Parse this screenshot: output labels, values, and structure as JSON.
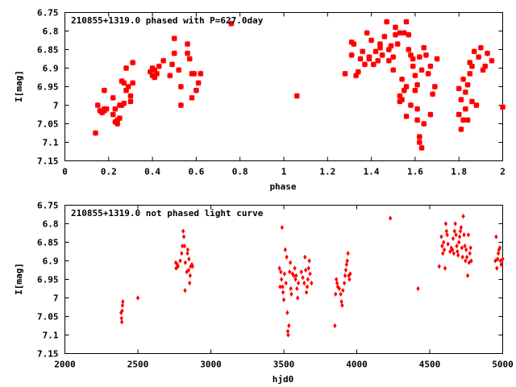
{
  "chart_data": [
    {
      "type": "scatter",
      "title": "210855+1319.0 phased with P=627.0day",
      "xlabel": "phase",
      "ylabel": "I[mag]",
      "xlim": [
        0,
        2
      ],
      "ylim": [
        6.75,
        7.15
      ],
      "y_inverted": true,
      "xticks": [
        "0",
        "0.2",
        "0.4",
        "0.6",
        "0.8",
        "1",
        "1.2",
        "1.4",
        "1.6",
        "1.8",
        "2"
      ],
      "yticks": [
        "6.75",
        "6.8",
        "6.85",
        "6.9",
        "6.95",
        "7",
        "7.05",
        "7.1",
        "7.15"
      ],
      "marker": "cross",
      "color": "#ff0000",
      "grid": false,
      "points": [
        [
          0.14,
          7.075
        ],
        [
          0.15,
          7.0
        ],
        [
          0.16,
          7.015
        ],
        [
          0.17,
          7.02
        ],
        [
          0.18,
          7.01
        ],
        [
          0.18,
          6.96
        ],
        [
          0.18,
          7.015
        ],
        [
          0.19,
          7.01
        ],
        [
          0.22,
          6.98
        ],
        [
          0.22,
          7.025
        ],
        [
          0.23,
          7.045
        ],
        [
          0.23,
          7.01
        ],
        [
          0.24,
          7.04
        ],
        [
          0.24,
          7.05
        ],
        [
          0.25,
          7.035
        ],
        [
          0.25,
          7.0
        ],
        [
          0.26,
          6.935
        ],
        [
          0.26,
          7.0
        ],
        [
          0.27,
          6.995
        ],
        [
          0.27,
          6.94
        ],
        [
          0.28,
          6.9
        ],
        [
          0.28,
          6.96
        ],
        [
          0.29,
          6.95
        ],
        [
          0.3,
          6.975
        ],
        [
          0.3,
          6.99
        ],
        [
          0.31,
          6.94
        ],
        [
          0.31,
          6.885
        ],
        [
          0.39,
          6.91
        ],
        [
          0.4,
          6.9
        ],
        [
          0.4,
          6.92
        ],
        [
          0.41,
          6.905
        ],
        [
          0.41,
          6.925
        ],
        [
          0.42,
          6.915
        ],
        [
          0.43,
          6.895
        ],
        [
          0.45,
          6.88
        ],
        [
          0.48,
          6.92
        ],
        [
          0.49,
          6.89
        ],
        [
          0.5,
          6.86
        ],
        [
          0.5,
          6.82
        ],
        [
          0.52,
          6.905
        ],
        [
          0.53,
          6.95
        ],
        [
          0.53,
          7.0
        ],
        [
          0.56,
          6.86
        ],
        [
          0.56,
          6.835
        ],
        [
          0.57,
          6.875
        ],
        [
          0.58,
          6.915
        ],
        [
          0.58,
          6.98
        ],
        [
          0.59,
          6.915
        ],
        [
          0.6,
          6.96
        ],
        [
          0.61,
          6.94
        ],
        [
          0.62,
          6.915
        ],
        [
          0.76,
          6.78
        ],
        [
          1.06,
          6.975
        ],
        [
          1.28,
          6.915
        ],
        [
          1.31,
          6.83
        ],
        [
          1.31,
          6.865
        ],
        [
          1.32,
          6.835
        ],
        [
          1.33,
          6.92
        ],
        [
          1.34,
          6.91
        ],
        [
          1.35,
          6.875
        ],
        [
          1.36,
          6.855
        ],
        [
          1.37,
          6.89
        ],
        [
          1.38,
          6.805
        ],
        [
          1.39,
          6.875
        ],
        [
          1.39,
          6.87
        ],
        [
          1.4,
          6.825
        ],
        [
          1.41,
          6.89
        ],
        [
          1.42,
          6.855
        ],
        [
          1.43,
          6.88
        ],
        [
          1.44,
          6.835
        ],
        [
          1.44,
          6.845
        ],
        [
          1.45,
          6.865
        ],
        [
          1.46,
          6.815
        ],
        [
          1.47,
          6.775
        ],
        [
          1.48,
          6.85
        ],
        [
          1.48,
          6.88
        ],
        [
          1.49,
          6.84
        ],
        [
          1.5,
          6.87
        ],
        [
          1.5,
          6.905
        ],
        [
          1.51,
          6.79
        ],
        [
          1.51,
          6.81
        ],
        [
          1.52,
          6.835
        ],
        [
          1.53,
          6.805
        ],
        [
          1.53,
          6.975
        ],
        [
          1.53,
          6.99
        ],
        [
          1.54,
          6.985
        ],
        [
          1.54,
          6.93
        ],
        [
          1.55,
          6.805
        ],
        [
          1.55,
          6.96
        ],
        [
          1.56,
          6.775
        ],
        [
          1.56,
          6.95
        ],
        [
          1.56,
          7.03
        ],
        [
          1.57,
          6.81
        ],
        [
          1.57,
          6.85
        ],
        [
          1.58,
          7.0
        ],
        [
          1.58,
          6.865
        ],
        [
          1.59,
          6.875
        ],
        [
          1.59,
          6.895
        ],
        [
          1.6,
          6.92
        ],
        [
          1.6,
          6.96
        ],
        [
          1.61,
          7.01
        ],
        [
          1.61,
          7.04
        ],
        [
          1.61,
          6.945
        ],
        [
          1.62,
          7.085
        ],
        [
          1.62,
          7.1
        ],
        [
          1.62,
          6.87
        ],
        [
          1.63,
          7.115
        ],
        [
          1.63,
          6.905
        ],
        [
          1.64,
          7.05
        ],
        [
          1.64,
          6.845
        ],
        [
          1.65,
          6.865
        ],
        [
          1.66,
          6.915
        ],
        [
          1.67,
          6.895
        ],
        [
          1.67,
          7.025
        ],
        [
          1.68,
          6.97
        ],
        [
          1.69,
          6.95
        ],
        [
          1.7,
          6.875
        ],
        [
          1.8,
          6.955
        ],
        [
          1.8,
          7.025
        ],
        [
          1.81,
          7.065
        ],
        [
          1.81,
          6.985
        ],
        [
          1.82,
          6.93
        ],
        [
          1.82,
          7.04
        ],
        [
          1.83,
          6.965
        ],
        [
          1.83,
          7.01
        ],
        [
          1.84,
          6.945
        ],
        [
          1.84,
          7.04
        ],
        [
          1.85,
          6.915
        ],
        [
          1.85,
          6.885
        ],
        [
          1.86,
          6.895
        ],
        [
          1.86,
          6.99
        ],
        [
          1.87,
          6.855
        ],
        [
          1.88,
          7.0
        ],
        [
          1.89,
          6.87
        ],
        [
          1.9,
          6.845
        ],
        [
          1.91,
          6.905
        ],
        [
          1.92,
          6.895
        ],
        [
          1.93,
          6.86
        ],
        [
          1.95,
          6.88
        ],
        [
          2.0,
          7.005
        ]
      ]
    },
    {
      "type": "scatter",
      "title": "210855+1319.0 not phased light curve",
      "xlabel": "hjd0",
      "ylabel": "I[mag]",
      "xlim": [
        2000,
        5000
      ],
      "ylim": [
        6.75,
        7.15
      ],
      "y_inverted": true,
      "xticks": [
        "2000",
        "2500",
        "3000",
        "3500",
        "4000",
        "4500",
        "5000"
      ],
      "yticks": [
        "6.75",
        "6.8",
        "6.85",
        "6.9",
        "6.95",
        "7",
        "7.05",
        "7.1",
        "7.15"
      ],
      "marker": "diamond",
      "color": "#ff0000",
      "grid": false,
      "points": [
        [
          2385,
          7.04
        ],
        [
          2388,
          7.055
        ],
        [
          2390,
          7.065
        ],
        [
          2392,
          7.035
        ],
        [
          2395,
          7.02
        ],
        [
          2397,
          7.01
        ],
        [
          2500,
          7.0
        ],
        [
          2760,
          6.905
        ],
        [
          2762,
          6.92
        ],
        [
          2770,
          6.91
        ],
        [
          2775,
          6.915
        ],
        [
          2790,
          6.9
        ],
        [
          2800,
          6.88
        ],
        [
          2805,
          6.86
        ],
        [
          2810,
          6.82
        ],
        [
          2815,
          6.835
        ],
        [
          2820,
          6.86
        ],
        [
          2823,
          6.98
        ],
        [
          2825,
          6.905
        ],
        [
          2835,
          6.93
        ],
        [
          2840,
          6.88
        ],
        [
          2842,
          6.87
        ],
        [
          2848,
          6.925
        ],
        [
          2850,
          6.895
        ],
        [
          2855,
          6.96
        ],
        [
          2858,
          6.94
        ],
        [
          2862,
          6.915
        ],
        [
          2870,
          6.91
        ],
        [
          2875,
          6.915
        ],
        [
          3470,
          6.92
        ],
        [
          3475,
          6.97
        ],
        [
          3480,
          6.93
        ],
        [
          3484,
          6.95
        ],
        [
          3488,
          6.81
        ],
        [
          3492,
          6.97
        ],
        [
          3495,
          6.985
        ],
        [
          3500,
          7.005
        ],
        [
          3505,
          6.935
        ],
        [
          3510,
          6.87
        ],
        [
          3515,
          6.96
        ],
        [
          3520,
          6.89
        ],
        [
          3524,
          7.04
        ],
        [
          3528,
          7.09
        ],
        [
          3530,
          7.1
        ],
        [
          3535,
          7.075
        ],
        [
          3540,
          6.93
        ],
        [
          3545,
          6.905
        ],
        [
          3548,
          6.975
        ],
        [
          3552,
          6.99
        ],
        [
          3560,
          6.935
        ],
        [
          3568,
          6.94
        ],
        [
          3575,
          6.92
        ],
        [
          3580,
          6.95
        ],
        [
          3585,
          6.94
        ],
        [
          3590,
          6.975
        ],
        [
          3595,
          7.0
        ],
        [
          3600,
          6.96
        ],
        [
          3620,
          6.93
        ],
        [
          3630,
          6.945
        ],
        [
          3640,
          6.96
        ],
        [
          3645,
          6.89
        ],
        [
          3650,
          6.925
        ],
        [
          3655,
          6.985
        ],
        [
          3660,
          6.97
        ],
        [
          3665,
          6.95
        ],
        [
          3670,
          6.92
        ],
        [
          3675,
          6.9
        ],
        [
          3680,
          6.935
        ],
        [
          3690,
          6.96
        ],
        [
          3850,
          7.075
        ],
        [
          3855,
          6.99
        ],
        [
          3860,
          6.95
        ],
        [
          3865,
          6.96
        ],
        [
          3870,
          6.97
        ],
        [
          3880,
          6.975
        ],
        [
          3890,
          6.99
        ],
        [
          3895,
          7.01
        ],
        [
          3900,
          7.02
        ],
        [
          3905,
          6.98
        ],
        [
          3915,
          6.96
        ],
        [
          3920,
          6.94
        ],
        [
          3925,
          6.925
        ],
        [
          3930,
          6.91
        ],
        [
          3935,
          6.9
        ],
        [
          3940,
          6.88
        ],
        [
          3945,
          6.94
        ],
        [
          3950,
          6.95
        ],
        [
          3955,
          6.935
        ],
        [
          4230,
          6.785
        ],
        [
          4420,
          6.975
        ],
        [
          4565,
          6.915
        ],
        [
          4580,
          6.835
        ],
        [
          4585,
          6.86
        ],
        [
          4590,
          6.88
        ],
        [
          4595,
          6.85
        ],
        [
          4600,
          6.87
        ],
        [
          4605,
          6.92
        ],
        [
          4610,
          6.8
        ],
        [
          4615,
          6.82
        ],
        [
          4620,
          6.83
        ],
        [
          4625,
          6.855
        ],
        [
          4640,
          6.875
        ],
        [
          4648,
          6.865
        ],
        [
          4655,
          6.87
        ],
        [
          4660,
          6.84
        ],
        [
          4665,
          6.88
        ],
        [
          4670,
          6.82
        ],
        [
          4675,
          6.8
        ],
        [
          4680,
          6.83
        ],
        [
          4685,
          6.86
        ],
        [
          4690,
          6.875
        ],
        [
          4695,
          6.885
        ],
        [
          4700,
          6.85
        ],
        [
          4705,
          6.835
        ],
        [
          4710,
          6.82
        ],
        [
          4715,
          6.81
        ],
        [
          4720,
          6.865
        ],
        [
          4725,
          6.89
        ],
        [
          4730,
          6.78
        ],
        [
          4735,
          6.83
        ],
        [
          4740,
          6.86
        ],
        [
          4745,
          6.9
        ],
        [
          4750,
          6.87
        ],
        [
          4755,
          6.89
        ],
        [
          4760,
          6.94
        ],
        [
          4765,
          6.83
        ],
        [
          4770,
          6.905
        ],
        [
          4775,
          6.88
        ],
        [
          4780,
          6.865
        ],
        [
          4785,
          6.9
        ],
        [
          4950,
          6.9
        ],
        [
          4955,
          6.835
        ],
        [
          4960,
          6.92
        ],
        [
          4965,
          6.895
        ],
        [
          4970,
          6.88
        ],
        [
          4975,
          6.87
        ],
        [
          4980,
          6.865
        ],
        [
          4985,
          6.9
        ],
        [
          4990,
          6.91
        ],
        [
          5000,
          6.895
        ]
      ]
    }
  ]
}
